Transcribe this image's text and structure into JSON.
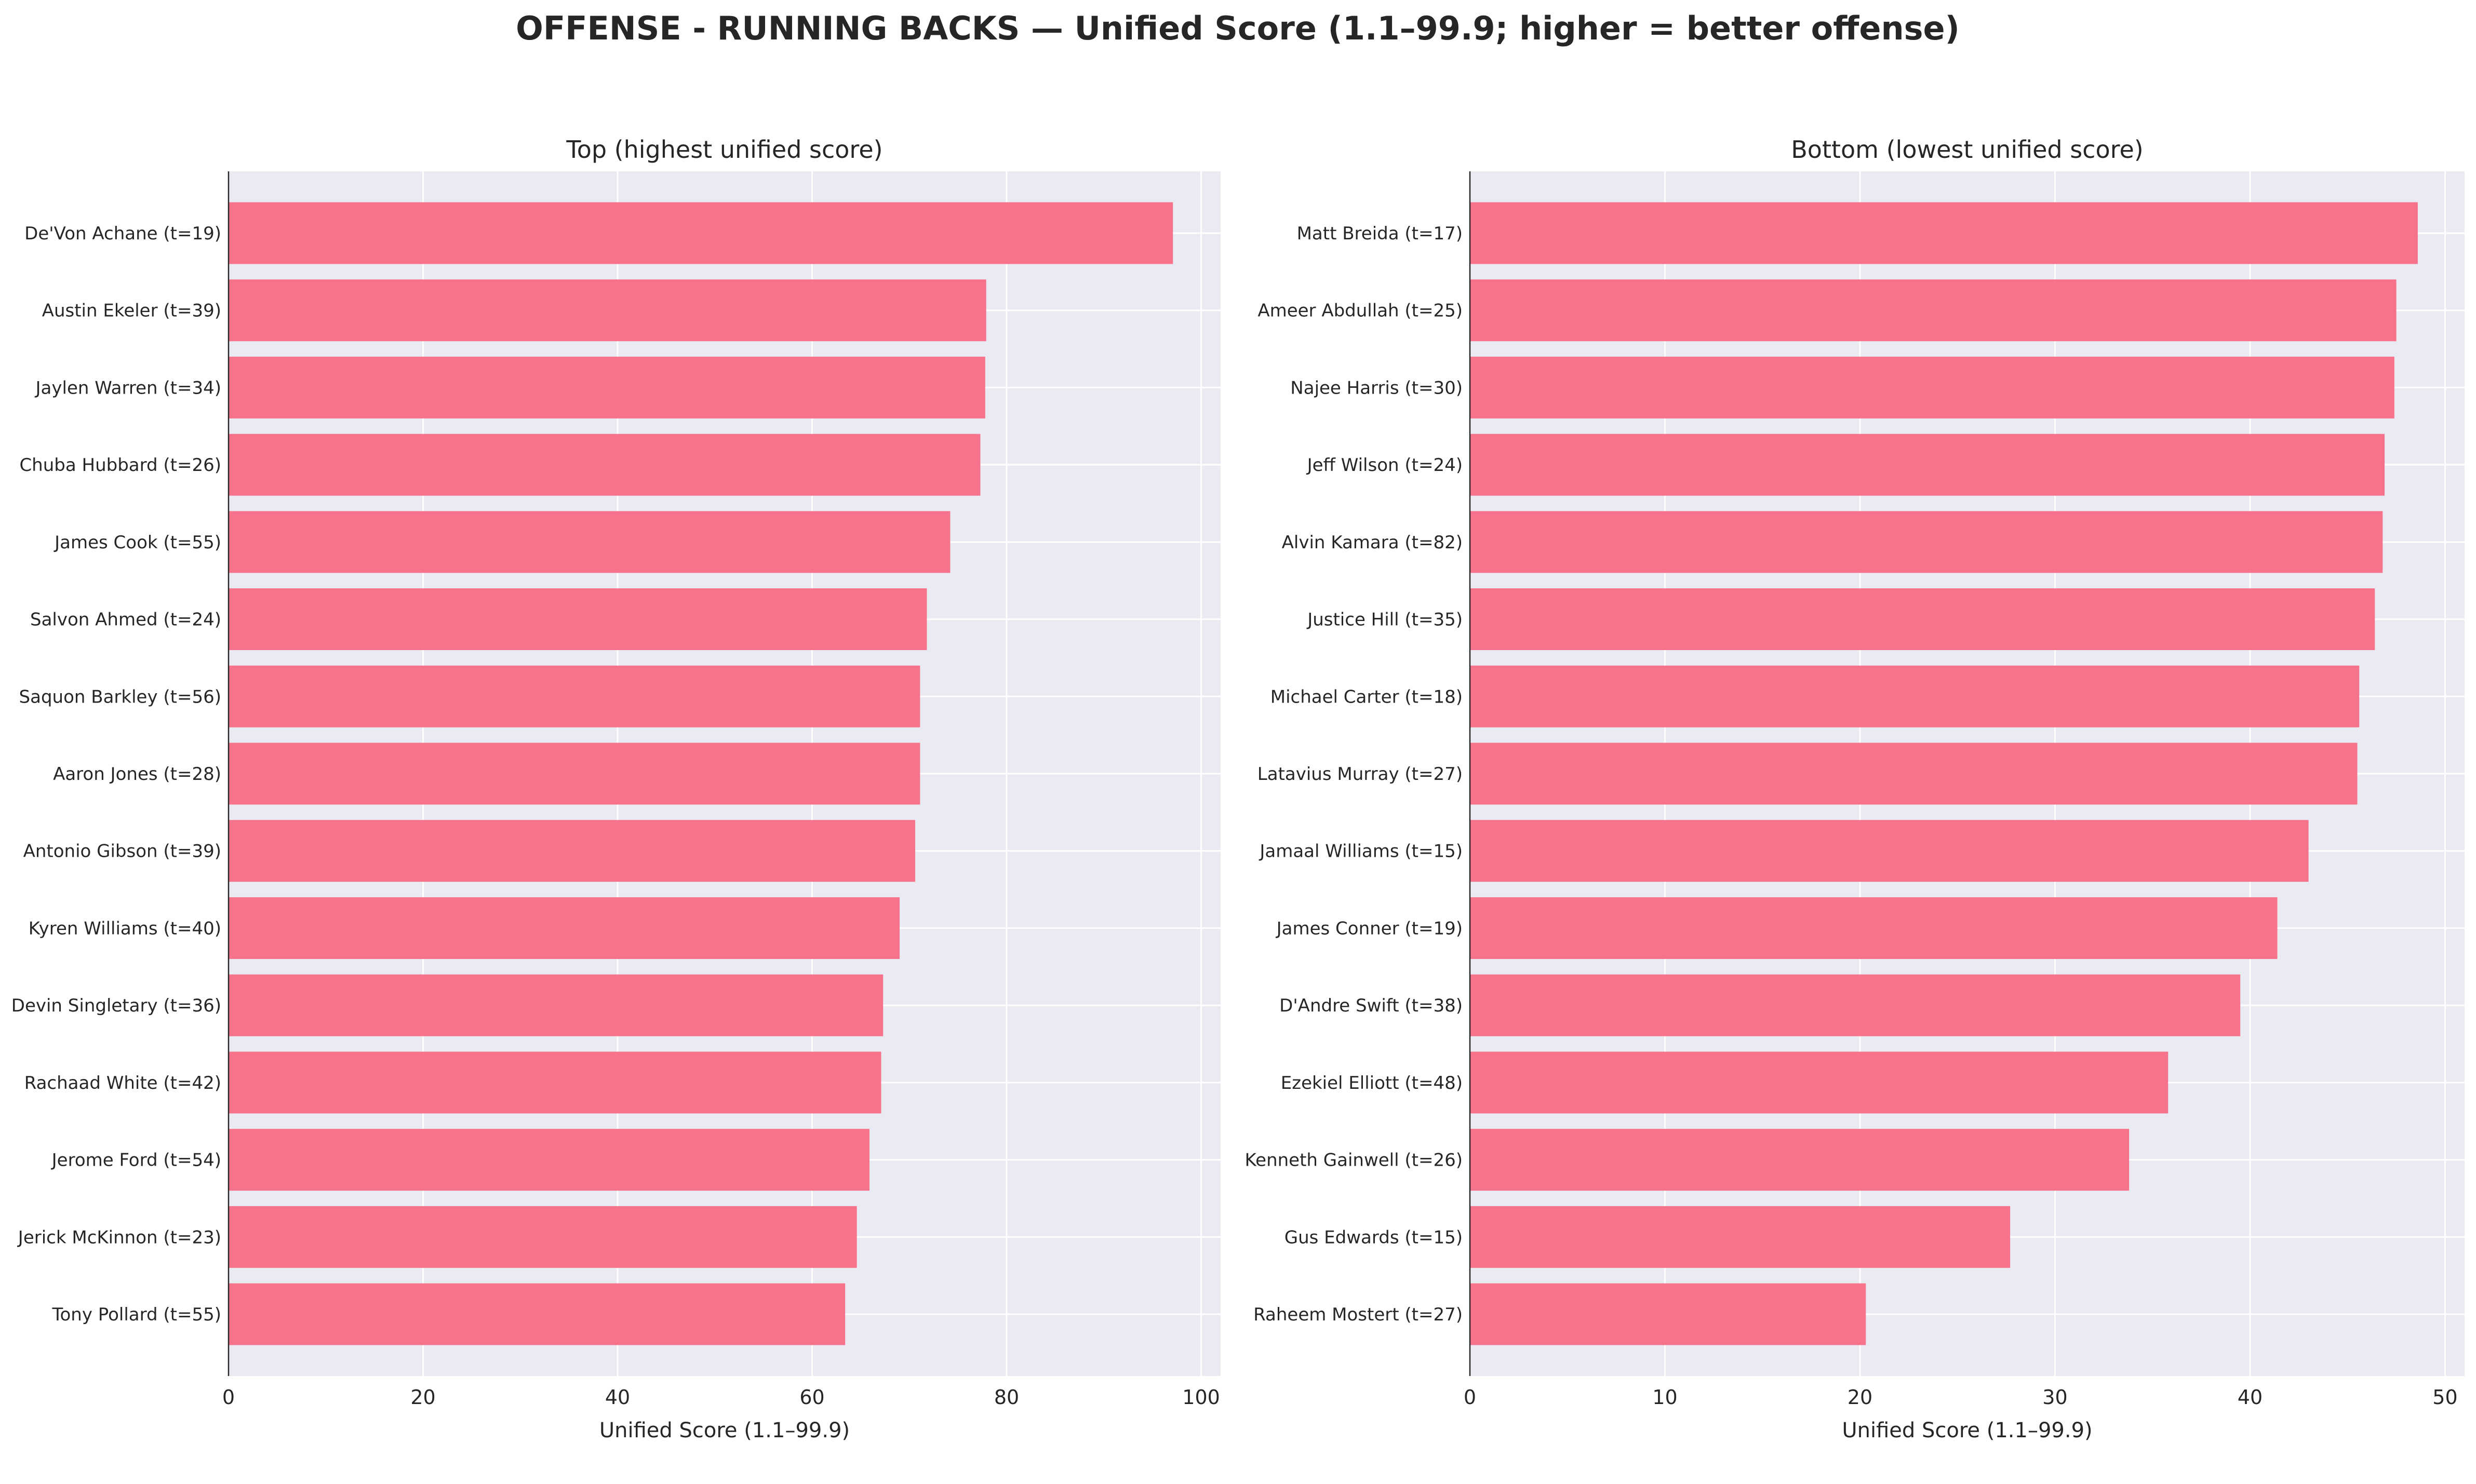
{
  "figure_title": "OFFENSE - RUNNING BACKS — Unified Score (1.1–99.9; higher = better offense)",
  "colors": {
    "bar": "#f7738b",
    "panel_bg": "#eaeaf2",
    "grid": "#ffffff",
    "text": "#262626",
    "axis_line": "#262626"
  },
  "chart_data": [
    {
      "type": "bar",
      "orientation": "horizontal",
      "title": "Top (highest unified score)",
      "xlabel": "Unified Score (1.1–99.9)",
      "ylabel": "",
      "xlim": [
        0,
        102
      ],
      "xticks": [
        0,
        20,
        40,
        60,
        80,
        100
      ],
      "grid": true,
      "categories": [
        "De'Von Achane  (t=19)",
        "Austin Ekeler  (t=39)",
        "Jaylen Warren  (t=34)",
        "Chuba Hubbard  (t=26)",
        "James Cook  (t=55)",
        "Salvon Ahmed  (t=24)",
        "Saquon Barkley  (t=56)",
        "Aaron Jones  (t=28)",
        "Antonio Gibson  (t=39)",
        "Kyren Williams  (t=40)",
        "Devin Singletary  (t=36)",
        "Rachaad White  (t=42)",
        "Jerome Ford  (t=54)",
        "Jerick McKinnon  (t=23)",
        "Tony Pollard  (t=55)"
      ],
      "values": [
        97.1,
        77.9,
        77.8,
        77.3,
        74.2,
        71.8,
        71.1,
        71.1,
        70.6,
        69.0,
        67.3,
        67.1,
        65.9,
        64.6,
        63.4
      ]
    },
    {
      "type": "bar",
      "orientation": "horizontal",
      "title": "Bottom (lowest unified score)",
      "xlabel": "Unified Score (1.1–99.9)",
      "ylabel": "",
      "xlim": [
        0,
        51
      ],
      "xticks": [
        0,
        10,
        20,
        30,
        40,
        50
      ],
      "grid": true,
      "categories": [
        "Matt Breida  (t=17)",
        "Ameer Abdullah  (t=25)",
        "Najee Harris  (t=30)",
        "Jeff Wilson  (t=24)",
        "Alvin Kamara  (t=82)",
        "Justice Hill  (t=35)",
        "Michael Carter  (t=18)",
        "Latavius Murray  (t=27)",
        "Jamaal Williams  (t=15)",
        "James Conner  (t=19)",
        "D'Andre Swift  (t=38)",
        "Ezekiel Elliott  (t=48)",
        "Kenneth Gainwell  (t=26)",
        "Gus Edwards  (t=15)",
        "Raheem Mostert  (t=27)"
      ],
      "values": [
        48.6,
        47.5,
        47.4,
        46.9,
        46.8,
        46.4,
        45.6,
        45.5,
        43.0,
        41.4,
        39.5,
        35.8,
        33.8,
        27.7,
        20.3
      ]
    }
  ]
}
